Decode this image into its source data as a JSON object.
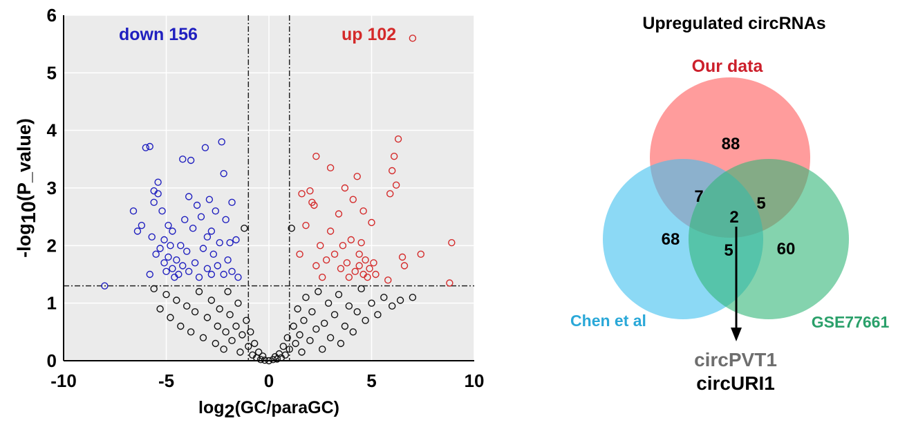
{
  "volcano": {
    "chart_data": {
      "type": "scatter",
      "xlabel_base": "log",
      "xlabel_sub": "2",
      "xlabel_rest": "(GC/paraGC)",
      "ylabel_base": "-log",
      "ylabel_sub": "10",
      "ylabel_rest": "(P_value)",
      "xlim": [
        -10,
        10
      ],
      "ylim": [
        0,
        6
      ],
      "xticks": [
        "-10",
        "-5",
        "0",
        "5",
        "10"
      ],
      "yticks": [
        "0",
        "1",
        "2",
        "3",
        "4",
        "5",
        "6"
      ],
      "grid": true,
      "thresholds": {
        "x": [
          -1,
          1
        ],
        "y": 1.3
      },
      "down_label": "down 156",
      "up_label": "up 102",
      "series": [
        {
          "color": "#1f1fbf",
          "points": [
            [
              -8,
              1.3
            ],
            [
              -6.6,
              2.6
            ],
            [
              -6.4,
              2.25
            ],
            [
              -6.2,
              2.35
            ],
            [
              -6.0,
              3.7
            ],
            [
              -5.8,
              3.72
            ],
            [
              -5.8,
              1.5
            ],
            [
              -5.7,
              2.15
            ],
            [
              -5.6,
              2.75
            ],
            [
              -5.6,
              2.95
            ],
            [
              -5.5,
              1.85
            ],
            [
              -5.4,
              3.1
            ],
            [
              -5.4,
              2.9
            ],
            [
              -5.3,
              1.95
            ],
            [
              -5.2,
              2.6
            ],
            [
              -5.1,
              1.7
            ],
            [
              -5.1,
              2.1
            ],
            [
              -5.0,
              1.55
            ],
            [
              -4.9,
              2.35
            ],
            [
              -4.9,
              1.8
            ],
            [
              -4.8,
              2.0
            ],
            [
              -4.7,
              1.6
            ],
            [
              -4.7,
              2.25
            ],
            [
              -4.6,
              1.45
            ],
            [
              -4.5,
              1.75
            ],
            [
              -4.4,
              1.5
            ],
            [
              -4.3,
              2.0
            ],
            [
              -4.2,
              3.5
            ],
            [
              -4.2,
              1.65
            ],
            [
              -4.1,
              2.45
            ],
            [
              -4.0,
              1.9
            ],
            [
              -3.9,
              2.85
            ],
            [
              -3.9,
              1.55
            ],
            [
              -3.8,
              3.48
            ],
            [
              -3.7,
              2.3
            ],
            [
              -3.6,
              1.7
            ],
            [
              -3.5,
              2.7
            ],
            [
              -3.4,
              1.45
            ],
            [
              -3.3,
              2.5
            ],
            [
              -3.2,
              1.95
            ],
            [
              -3.1,
              3.7
            ],
            [
              -3.0,
              2.15
            ],
            [
              -3.0,
              1.6
            ],
            [
              -2.9,
              2.8
            ],
            [
              -2.8,
              2.25
            ],
            [
              -2.8,
              1.5
            ],
            [
              -2.7,
              1.85
            ],
            [
              -2.6,
              2.6
            ],
            [
              -2.5,
              1.65
            ],
            [
              -2.4,
              2.05
            ],
            [
              -2.3,
              3.8
            ],
            [
              -2.2,
              3.25
            ],
            [
              -2.2,
              1.5
            ],
            [
              -2.1,
              2.45
            ],
            [
              -2.0,
              1.75
            ],
            [
              -1.9,
              2.05
            ],
            [
              -1.8,
              2.75
            ],
            [
              -1.8,
              1.55
            ],
            [
              -1.6,
              2.1
            ],
            [
              -1.5,
              1.45
            ]
          ]
        },
        {
          "color": "#d42a2a",
          "points": [
            [
              1.5,
              1.85
            ],
            [
              1.6,
              2.9
            ],
            [
              1.8,
              2.35
            ],
            [
              2.0,
              2.95
            ],
            [
              2.1,
              2.75
            ],
            [
              2.2,
              2.7
            ],
            [
              2.3,
              3.55
            ],
            [
              2.3,
              1.65
            ],
            [
              2.5,
              2.0
            ],
            [
              2.6,
              1.45
            ],
            [
              2.8,
              1.75
            ],
            [
              3.0,
              3.35
            ],
            [
              3.0,
              2.25
            ],
            [
              3.2,
              1.85
            ],
            [
              3.4,
              2.55
            ],
            [
              3.5,
              1.6
            ],
            [
              3.6,
              2.0
            ],
            [
              3.7,
              3.0
            ],
            [
              3.8,
              1.7
            ],
            [
              3.9,
              1.45
            ],
            [
              4.0,
              2.1
            ],
            [
              4.1,
              2.8
            ],
            [
              4.2,
              1.55
            ],
            [
              4.3,
              3.2
            ],
            [
              4.4,
              1.65
            ],
            [
              4.4,
              1.85
            ],
            [
              4.5,
              2.05
            ],
            [
              4.6,
              1.5
            ],
            [
              4.6,
              2.6
            ],
            [
              4.7,
              1.75
            ],
            [
              4.8,
              1.45
            ],
            [
              4.9,
              1.6
            ],
            [
              5.0,
              2.4
            ],
            [
              5.1,
              1.7
            ],
            [
              5.2,
              1.5
            ],
            [
              5.8,
              1.4
            ],
            [
              5.9,
              2.9
            ],
            [
              6.0,
              3.3
            ],
            [
              6.1,
              3.55
            ],
            [
              6.2,
              3.05
            ],
            [
              6.3,
              3.85
            ],
            [
              6.5,
              1.8
            ],
            [
              6.6,
              1.65
            ],
            [
              7.0,
              5.6
            ],
            [
              7.4,
              1.85
            ],
            [
              8.8,
              1.35
            ],
            [
              8.9,
              2.05
            ]
          ]
        },
        {
          "color": "#111111",
          "points": [
            [
              -5.6,
              1.25
            ],
            [
              -5.3,
              0.9
            ],
            [
              -5.0,
              1.15
            ],
            [
              -4.8,
              0.75
            ],
            [
              -4.5,
              1.05
            ],
            [
              -4.3,
              0.6
            ],
            [
              -4.0,
              0.95
            ],
            [
              -3.8,
              0.5
            ],
            [
              -3.6,
              0.85
            ],
            [
              -3.4,
              1.2
            ],
            [
              -3.2,
              0.4
            ],
            [
              -3.0,
              0.75
            ],
            [
              -2.8,
              1.05
            ],
            [
              -2.6,
              0.3
            ],
            [
              -2.5,
              0.6
            ],
            [
              -2.4,
              0.9
            ],
            [
              -2.2,
              0.2
            ],
            [
              -2.1,
              0.5
            ],
            [
              -2.0,
              1.2
            ],
            [
              -1.9,
              0.8
            ],
            [
              -1.8,
              0.35
            ],
            [
              -1.6,
              0.6
            ],
            [
              -1.5,
              1.0
            ],
            [
              -1.4,
              0.15
            ],
            [
              -1.3,
              0.45
            ],
            [
              -1.2,
              2.3
            ],
            [
              -1.1,
              0.7
            ],
            [
              -1.0,
              0.25
            ],
            [
              -0.9,
              0.5
            ],
            [
              -0.8,
              0.1
            ],
            [
              -0.7,
              0.3
            ],
            [
              -0.6,
              0.05
            ],
            [
              -0.5,
              0.15
            ],
            [
              -0.4,
              0.02
            ],
            [
              -0.3,
              0.08
            ],
            [
              -0.2,
              0.01
            ],
            [
              0.0,
              0.0
            ],
            [
              0.2,
              0.02
            ],
            [
              0.3,
              0.07
            ],
            [
              0.4,
              0.03
            ],
            [
              0.5,
              0.12
            ],
            [
              0.6,
              0.05
            ],
            [
              0.7,
              0.25
            ],
            [
              0.8,
              0.1
            ],
            [
              0.9,
              0.4
            ],
            [
              1.0,
              0.2
            ],
            [
              1.1,
              2.3
            ],
            [
              1.2,
              0.6
            ],
            [
              1.3,
              0.3
            ],
            [
              1.4,
              0.9
            ],
            [
              1.5,
              0.45
            ],
            [
              1.6,
              0.15
            ],
            [
              1.7,
              0.7
            ],
            [
              1.8,
              1.1
            ],
            [
              2.0,
              0.35
            ],
            [
              2.1,
              0.85
            ],
            [
              2.3,
              0.55
            ],
            [
              2.4,
              1.2
            ],
            [
              2.6,
              0.2
            ],
            [
              2.7,
              0.65
            ],
            [
              2.9,
              1.0
            ],
            [
              3.0,
              0.4
            ],
            [
              3.2,
              0.8
            ],
            [
              3.4,
              1.15
            ],
            [
              3.5,
              0.3
            ],
            [
              3.7,
              0.6
            ],
            [
              3.9,
              0.95
            ],
            [
              4.1,
              0.5
            ],
            [
              4.3,
              0.85
            ],
            [
              4.5,
              1.25
            ],
            [
              4.7,
              0.7
            ],
            [
              5.0,
              1.0
            ],
            [
              5.3,
              0.8
            ],
            [
              5.6,
              1.1
            ],
            [
              6.0,
              0.95
            ],
            [
              6.4,
              1.05
            ],
            [
              7.0,
              1.1
            ]
          ]
        }
      ]
    }
  },
  "venn": {
    "title": "Upregulated circRNAs",
    "sets": [
      {
        "label": "Our data",
        "color": "#ff5a5a",
        "label_color": "#cc1f2b"
      },
      {
        "label": "Chen et al",
        "color": "#3fc0ee",
        "label_color": "#2aa8d8"
      },
      {
        "label": "GSE77661",
        "color": "#32b678",
        "label_color": "#2aa06a"
      }
    ],
    "counts": {
      "only_a": "88",
      "only_b": "68",
      "only_c": "60",
      "ab": "7",
      "ac": "5",
      "bc": "5",
      "abc": "2"
    },
    "result_1": "circPVT1",
    "result_2": "circURI1"
  }
}
